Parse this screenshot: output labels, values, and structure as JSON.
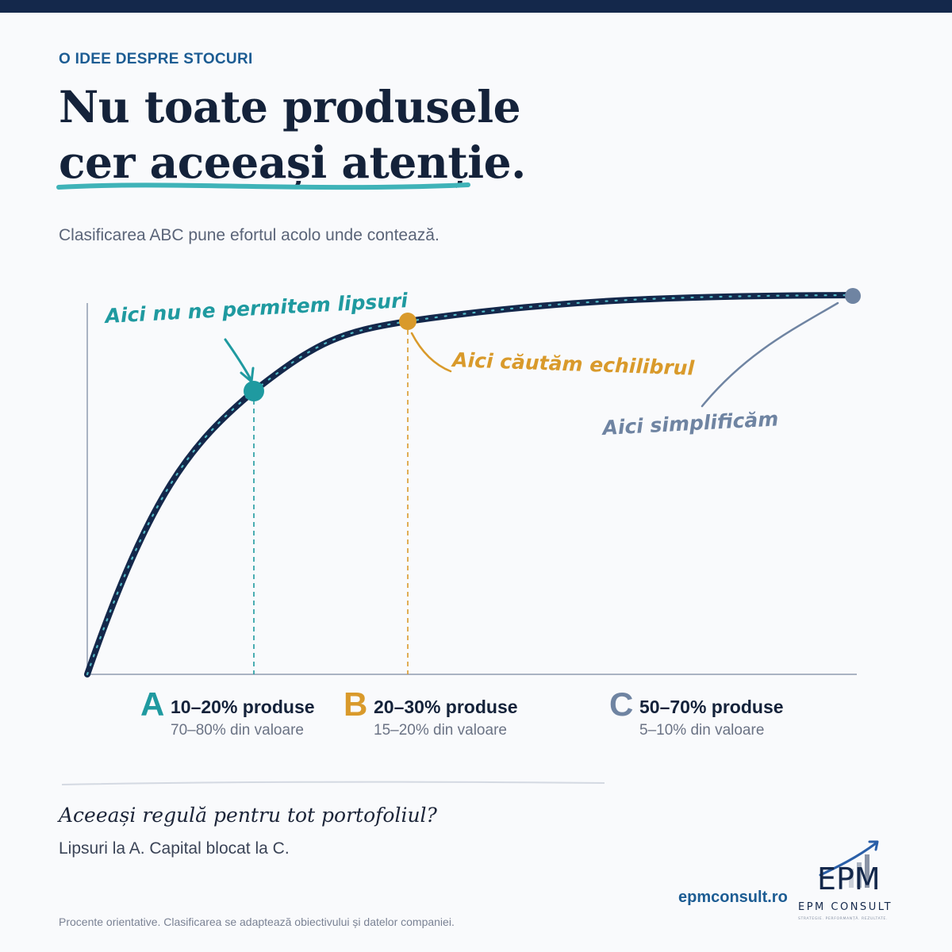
{
  "colors": {
    "navy": "#14284b",
    "teal": "#1f9aa0",
    "gold": "#d99a2b",
    "slate": "#6f84a2",
    "blue_text": "#1c5c93",
    "underline": "#3fb3b8"
  },
  "header": {
    "eyebrow": "O IDEE DESPRE STOCURI",
    "title_line1": "Nu toate produsele",
    "title_line2": "cer aceeași atenție.",
    "subtitle": "Clasificarea ABC pune efortul acolo unde contează."
  },
  "chart_data": {
    "type": "line",
    "curve": "cumulative-value (Pareto)",
    "annotations": [
      {
        "id": "A",
        "text": "Aici nu ne permitem lipsuri",
        "color": "#1f9aa0"
      },
      {
        "id": "B",
        "text": "Aici căutăm echilibrul",
        "color": "#d99a2b"
      },
      {
        "id": "C",
        "text": "Aici simplificăm",
        "color": "#6f84a2"
      }
    ]
  },
  "categories": [
    {
      "letter": "A",
      "products": "10–20% produse",
      "value": "70–80% din valoare",
      "color": "#1f9aa0"
    },
    {
      "letter": "B",
      "products": "20–30% produse",
      "value": "15–20% din valoare",
      "color": "#d99a2b"
    },
    {
      "letter": "C",
      "products": "50–70% produse",
      "value": "5–10% din valoare",
      "color": "#6f84a2"
    }
  ],
  "bottom": {
    "question": "Aceeași regulă pentru tot portofoliul?",
    "answer": "Lipsuri la A. Capital blocat la C."
  },
  "footer": {
    "website": "epmconsult.ro",
    "logo_text": "EPM",
    "logo_sub": "EPM CONSULT",
    "logo_tagline": "STRATEGIE. PERFORMANȚĂ. REZULTATE.",
    "footnote": "Procente orientative. Clasificarea se adaptează obiectivului și datelor companiei."
  }
}
